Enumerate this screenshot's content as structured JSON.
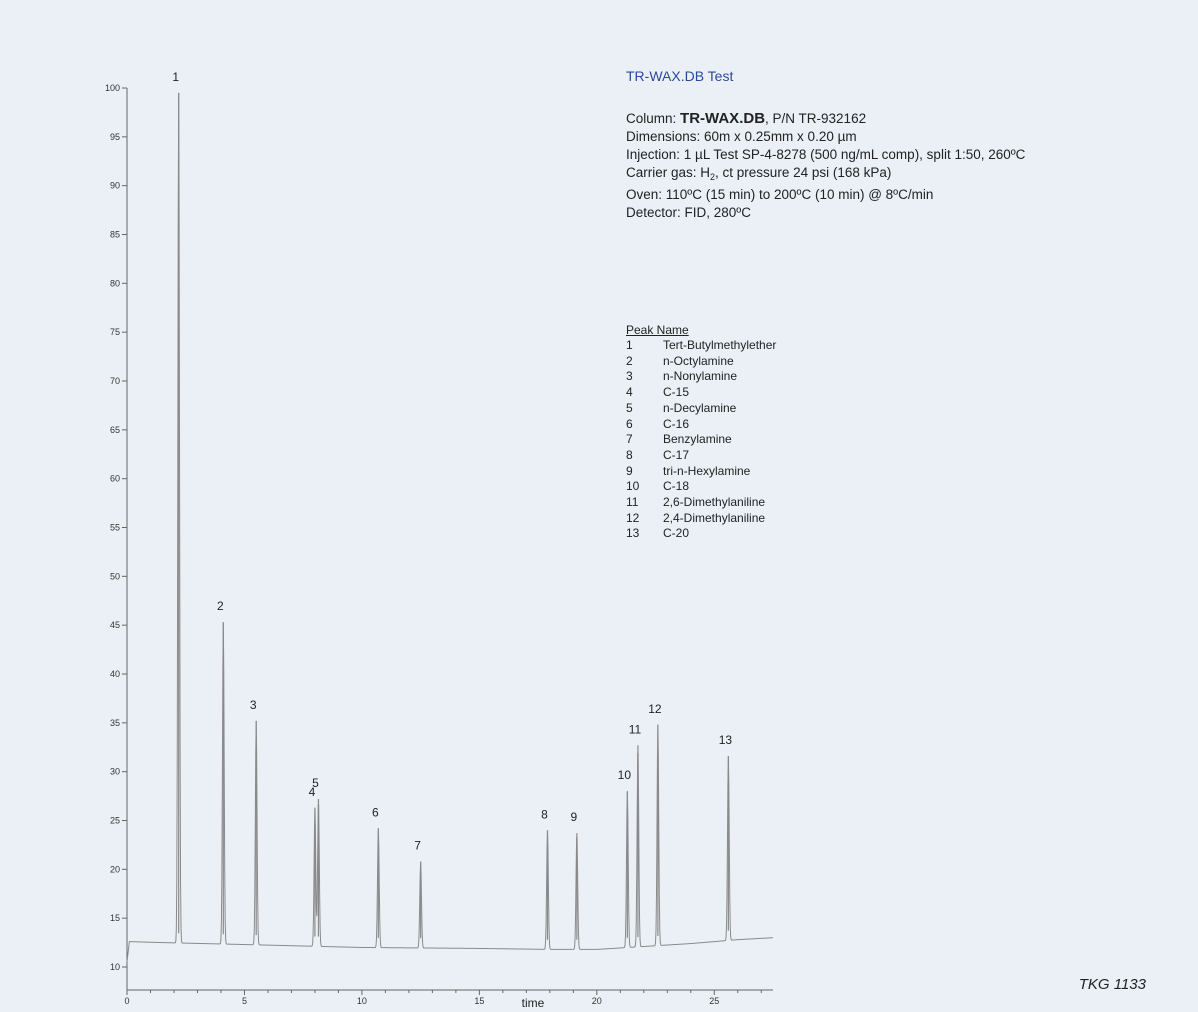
{
  "chart_data": {
    "type": "line",
    "title": "",
    "xlabel": "time",
    "ylabel": "",
    "xlim": [
      0,
      27.5
    ],
    "ylim": [
      10,
      100
    ],
    "xticks": [
      0,
      5,
      10,
      15,
      20,
      25
    ],
    "yticks": [
      10,
      15,
      20,
      25,
      30,
      35,
      40,
      45,
      50,
      55,
      60,
      65,
      70,
      75,
      80,
      85,
      90,
      95,
      100
    ],
    "grid": false,
    "baseline": [
      [
        0,
        10.5
      ],
      [
        0.1,
        12.6
      ],
      [
        1.5,
        12.5
      ],
      [
        5,
        12.3
      ],
      [
        10,
        12.0
      ],
      [
        15,
        11.9
      ],
      [
        18,
        11.8
      ],
      [
        20,
        11.8
      ],
      [
        22,
        12.1
      ],
      [
        24,
        12.4
      ],
      [
        26,
        12.8
      ],
      [
        27.5,
        13.0
      ]
    ],
    "peaks": [
      {
        "label": "1",
        "rt": 2.2,
        "height": 99.5
      },
      {
        "label": "2",
        "rt": 4.1,
        "height": 45.3
      },
      {
        "label": "3",
        "rt": 5.5,
        "height": 35.2
      },
      {
        "label": "4",
        "rt": 8.0,
        "height": 26.3
      },
      {
        "label": "5",
        "rt": 8.15,
        "height": 27.2
      },
      {
        "label": "6",
        "rt": 10.7,
        "height": 24.2
      },
      {
        "label": "7",
        "rt": 12.5,
        "height": 20.8
      },
      {
        "label": "8",
        "rt": 17.9,
        "height": 24.0
      },
      {
        "label": "9",
        "rt": 19.15,
        "height": 23.7
      },
      {
        "label": "10",
        "rt": 21.3,
        "height": 28.0
      },
      {
        "label": "11",
        "rt": 21.75,
        "height": 32.7
      },
      {
        "label": "12",
        "rt": 22.6,
        "height": 34.8
      },
      {
        "label": "13",
        "rt": 25.6,
        "height": 31.6
      }
    ]
  },
  "info": {
    "test_title": "TR-WAX.DB Test",
    "column_prefix": "Column: ",
    "column_bold": "TR-WAX.DB",
    "column_suffix": ", P/N TR-932162",
    "dimensions": "Dimensions: 60m x 0.25mm x 0.20 µm",
    "injection": "Injection: 1 µL Test SP-4-8278 (500 ng/mL comp), split 1:50, 260ºC",
    "carrier_prefix": "Carrier gas: H",
    "carrier_sub": "2",
    "carrier_suffix": ", ct pressure 24 psi (168 kPa)",
    "oven": "Oven: 110ºC (15 min) to 200ºC (10 min) @ 8ºC/min",
    "detector": "Detector: FID, 280ºC"
  },
  "peak_table": {
    "header": "Peak Name",
    "rows": [
      {
        "num": "1",
        "name": "Tert-Butylmethylether"
      },
      {
        "num": "2",
        "name": "n-Octylamine"
      },
      {
        "num": "3",
        "name": "n-Nonylamine"
      },
      {
        "num": "4",
        "name": "C-15"
      },
      {
        "num": "5",
        "name": "n-Decylamine"
      },
      {
        "num": "6",
        "name": "C-16"
      },
      {
        "num": "7",
        "name": "Benzylamine"
      },
      {
        "num": "8",
        "name": "C-17"
      },
      {
        "num": "9",
        "name": "tri-n-Hexylamine"
      },
      {
        "num": "10",
        "name": "C-18"
      },
      {
        "num": "11",
        "name": "2,6-Dimethylaniline"
      },
      {
        "num": "12",
        "name": "2,4-Dimethylaniline"
      },
      {
        "num": "13",
        "name": "C-20"
      }
    ]
  },
  "tag": "TKG 1133",
  "colors": {
    "trace": "#8a8a8a",
    "title": "#2b4a9a",
    "background": "#eaf0f6"
  }
}
